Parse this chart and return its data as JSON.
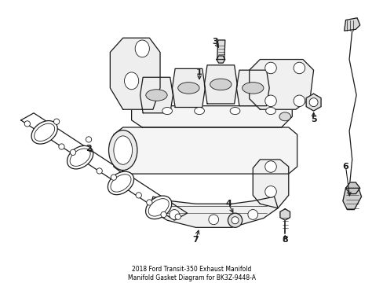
{
  "bg_color": "#ffffff",
  "line_color": "#1a1a1a",
  "fig_width": 4.89,
  "fig_height": 3.6,
  "dpi": 100,
  "title": "2018 Ford Transit-350 Exhaust Manifold\nManifold Gasket Diagram for BK3Z-9448-A"
}
